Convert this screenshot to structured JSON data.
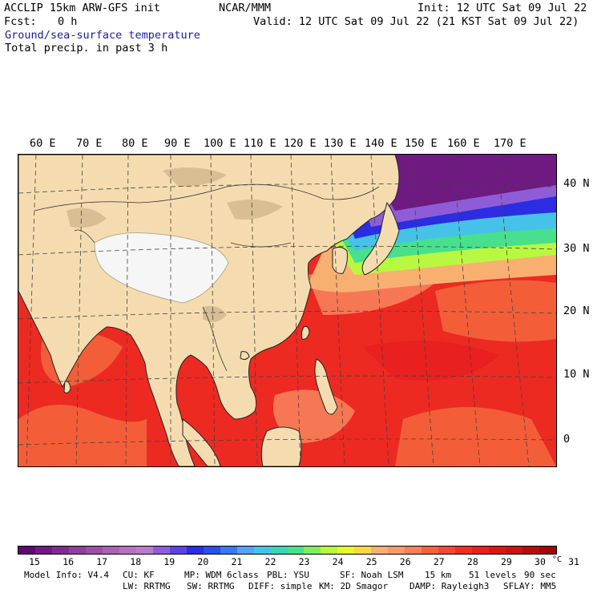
{
  "header": {
    "model_line": "ACCLIP 15km ARW-GFS init",
    "center": "NCAR/MMM",
    "init": "Init: 12 UTC Sat 09 Jul 22",
    "fcst_label": "Fcst:",
    "fcst_value": "0 h",
    "valid": "Valid: 12 UTC Sat 09 Jul 22 (21 KST Sat 09 Jul 22)",
    "field1": "Ground/sea-surface temperature",
    "field2": "Total precip. in past 3 h"
  },
  "map": {
    "lon_labels": [
      "60 E",
      "70 E",
      "80 E",
      "90 E",
      "100 E",
      "110 E",
      "120 E",
      "130 E",
      "140 E",
      "150 E",
      "160 E",
      "170 E"
    ],
    "lat_labels": [
      "40 N",
      "30 N",
      "20 N",
      "10 N",
      "0"
    ]
  },
  "colorbar": {
    "colors": [
      "#5c0a6e",
      "#6e1a80",
      "#7e2d8e",
      "#8d3f9a",
      "#9b50a6",
      "#a862b0",
      "#b472b8",
      "#b87cc8",
      "#8f5cd8",
      "#5a44e0",
      "#2c2ce0",
      "#2a50e8",
      "#3a78f0",
      "#58a0f8",
      "#46c2e8",
      "#40d2b8",
      "#48e08c",
      "#7ef060",
      "#b8f840",
      "#e8f830",
      "#f8d848",
      "#f8b070",
      "#f89a6a",
      "#f8805a",
      "#f4643c",
      "#f04838",
      "#ec3026",
      "#e82020",
      "#d81818",
      "#c81414",
      "#b40e0e",
      "#a00808"
    ],
    "ticks": [
      "15",
      "16",
      "17",
      "18",
      "19",
      "20",
      "21",
      "22",
      "23",
      "24",
      "25",
      "26",
      "27",
      "28",
      "29",
      "30",
      "31"
    ],
    "unit": "°C"
  },
  "footer": {
    "line1": [
      "Model Info: V4.4",
      "CU: KF",
      "MP: WDM 6class",
      "PBL: YSU",
      "SF: Noah LSM",
      "15 km",
      "51 levels",
      "90 sec"
    ],
    "line2": [
      "LW: RRTMG",
      "SW: RRTMG",
      "DIFF: simple",
      "KM: 2D Smagor",
      "DAMP: Rayleigh3",
      "SFLAY: MM5"
    ]
  }
}
